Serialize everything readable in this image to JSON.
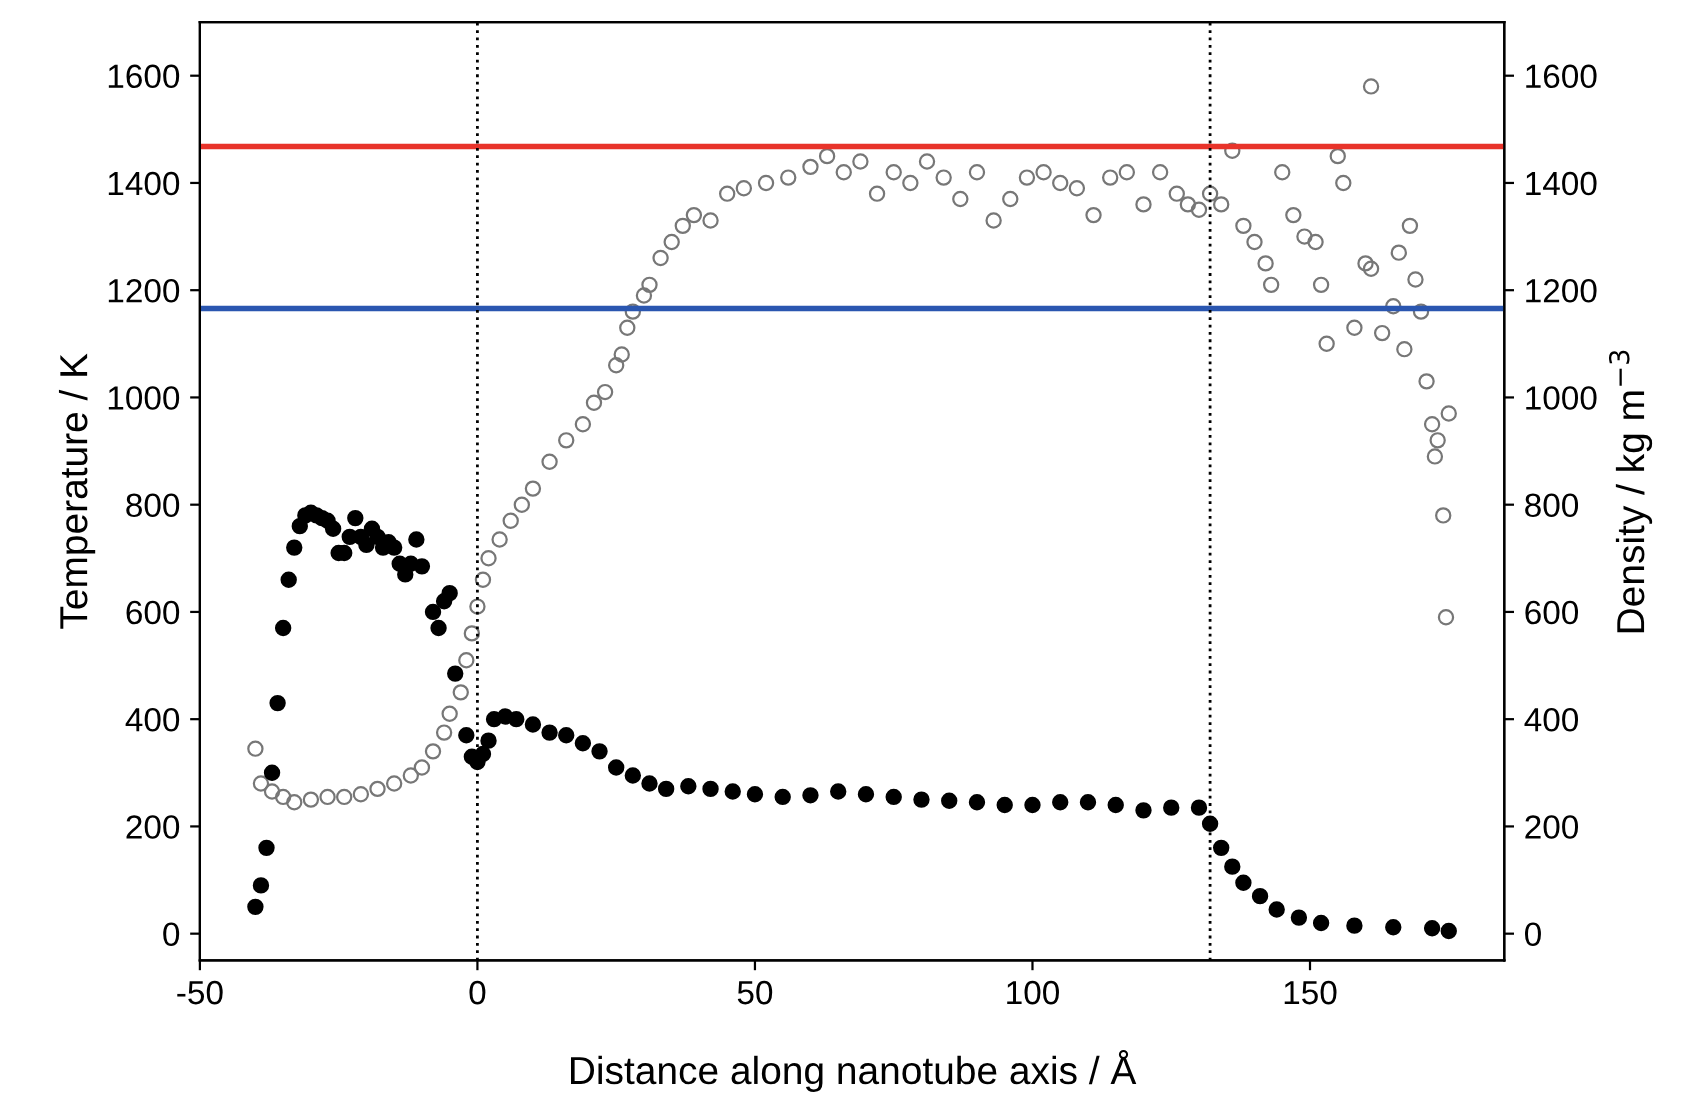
{
  "chart_data": {
    "type": "scatter",
    "xlabel": "Distance along nanotube axis / Å",
    "ylabel": "Temperature / K",
    "y2label": "Density / kg m$^{−3}$",
    "xlim": [
      -50,
      185
    ],
    "xticks": [
      -50,
      0,
      50,
      100,
      150
    ],
    "ylim": [
      -50,
      1700
    ],
    "yticks": [
      0,
      200,
      400,
      600,
      800,
      1000,
      1200,
      1400,
      1600
    ],
    "y2lim": [
      -50,
      1700
    ],
    "y2ticks": [
      0,
      200,
      400,
      600,
      800,
      1000,
      1200,
      1400,
      1600
    ],
    "grid": false,
    "legend": false,
    "marker": "circle",
    "series": [
      {
        "color": "#000000",
        "axis": "y",
        "x": [
          -40,
          -39,
          -38,
          -37,
          -36,
          -35,
          -34,
          -33,
          -32,
          -31,
          -30,
          -29,
          -28,
          -27,
          -26,
          -25,
          -24,
          -23,
          -22,
          -21,
          -20,
          -19,
          -18,
          -17,
          -16,
          -15,
          -14,
          -13,
          -12,
          -11,
          -10,
          -8,
          -7,
          -6,
          -5,
          -4,
          -2,
          -1,
          0,
          1,
          2,
          3,
          5,
          7,
          10,
          13,
          16,
          19,
          22,
          25,
          28,
          31,
          34,
          38,
          42,
          46,
          50,
          55,
          60,
          65,
          70,
          75,
          80,
          85,
          90,
          95,
          100,
          105,
          110,
          115,
          120,
          125,
          130,
          132,
          134,
          136,
          138,
          141,
          144,
          148,
          152,
          158,
          165,
          172,
          175
        ],
        "values": [
          50,
          90,
          160,
          300,
          430,
          570,
          660,
          720,
          760,
          780,
          785,
          780,
          775,
          770,
          755,
          710,
          710,
          740,
          775,
          740,
          725,
          755,
          740,
          720,
          730,
          720,
          690,
          670,
          690,
          735,
          685,
          600,
          570,
          620,
          635,
          485,
          370,
          330,
          320,
          335,
          360,
          400,
          405,
          400,
          390,
          375,
          370,
          355,
          340,
          310,
          295,
          280,
          270,
          275,
          270,
          265,
          260,
          255,
          258,
          265,
          260,
          255,
          250,
          248,
          245,
          240,
          240,
          245,
          245,
          240,
          230,
          235,
          235,
          205,
          160,
          125,
          95,
          70,
          45,
          30,
          20,
          15,
          12,
          10,
          5
        ]
      },
      {
        "color": "#777777",
        "axis": "y2",
        "x": [
          -40,
          -39,
          -37,
          -35,
          -33,
          -30,
          -27,
          -24,
          -21,
          -18,
          -15,
          -12,
          -10,
          -8,
          -6,
          -5,
          -3,
          -2,
          -1,
          0,
          1,
          2,
          4,
          6,
          8,
          10,
          13,
          16,
          19,
          21,
          23,
          25,
          26,
          27,
          28,
          30,
          31,
          33,
          35,
          37,
          39,
          42,
          45,
          48,
          52,
          56,
          60,
          63,
          66,
          69,
          72,
          75,
          78,
          81,
          84,
          87,
          90,
          93,
          96,
          99,
          102,
          105,
          108,
          111,
          114,
          117,
          120,
          123,
          126,
          128,
          130,
          132,
          134,
          136,
          138,
          140,
          142,
          143,
          145,
          147,
          149,
          151,
          152,
          153,
          155,
          156,
          158,
          160,
          161,
          161,
          163,
          165,
          166,
          167,
          168,
          169,
          170,
          171,
          172,
          173,
          172.5,
          174,
          174.5,
          175
        ],
        "values": [
          345,
          280,
          265,
          255,
          245,
          250,
          255,
          255,
          260,
          270,
          280,
          295,
          310,
          340,
          375,
          410,
          450,
          510,
          560,
          610,
          660,
          700,
          735,
          770,
          800,
          830,
          880,
          920,
          950,
          990,
          1010,
          1060,
          1080,
          1130,
          1160,
          1190,
          1210,
          1260,
          1290,
          1320,
          1340,
          1330,
          1380,
          1390,
          1400,
          1410,
          1430,
          1450,
          1420,
          1440,
          1380,
          1420,
          1400,
          1440,
          1410,
          1370,
          1420,
          1330,
          1370,
          1410,
          1420,
          1400,
          1390,
          1340,
          1410,
          1420,
          1360,
          1420,
          1380,
          1360,
          1350,
          1380,
          1360,
          1460,
          1320,
          1290,
          1250,
          1210,
          1420,
          1340,
          1300,
          1290,
          1210,
          1100,
          1450,
          1400,
          1130,
          1250,
          1240,
          1580,
          1120,
          1170,
          1270,
          1090,
          1320,
          1220,
          1160,
          1030,
          950,
          920,
          890,
          780,
          590,
          970
        ]
      }
    ],
    "ref_lines": [
      {
        "axis": "y",
        "value": 1468,
        "color": "#e8332a",
        "line_style": "solid"
      },
      {
        "axis": "y",
        "value": 1166,
        "color": "#2a56b0",
        "line_style": "solid"
      },
      {
        "axis": "x",
        "value": 0,
        "color": "#000000",
        "line_style": "dotted"
      },
      {
        "axis": "x",
        "value": 132,
        "color": "#000000",
        "line_style": "dotted"
      }
    ]
  }
}
